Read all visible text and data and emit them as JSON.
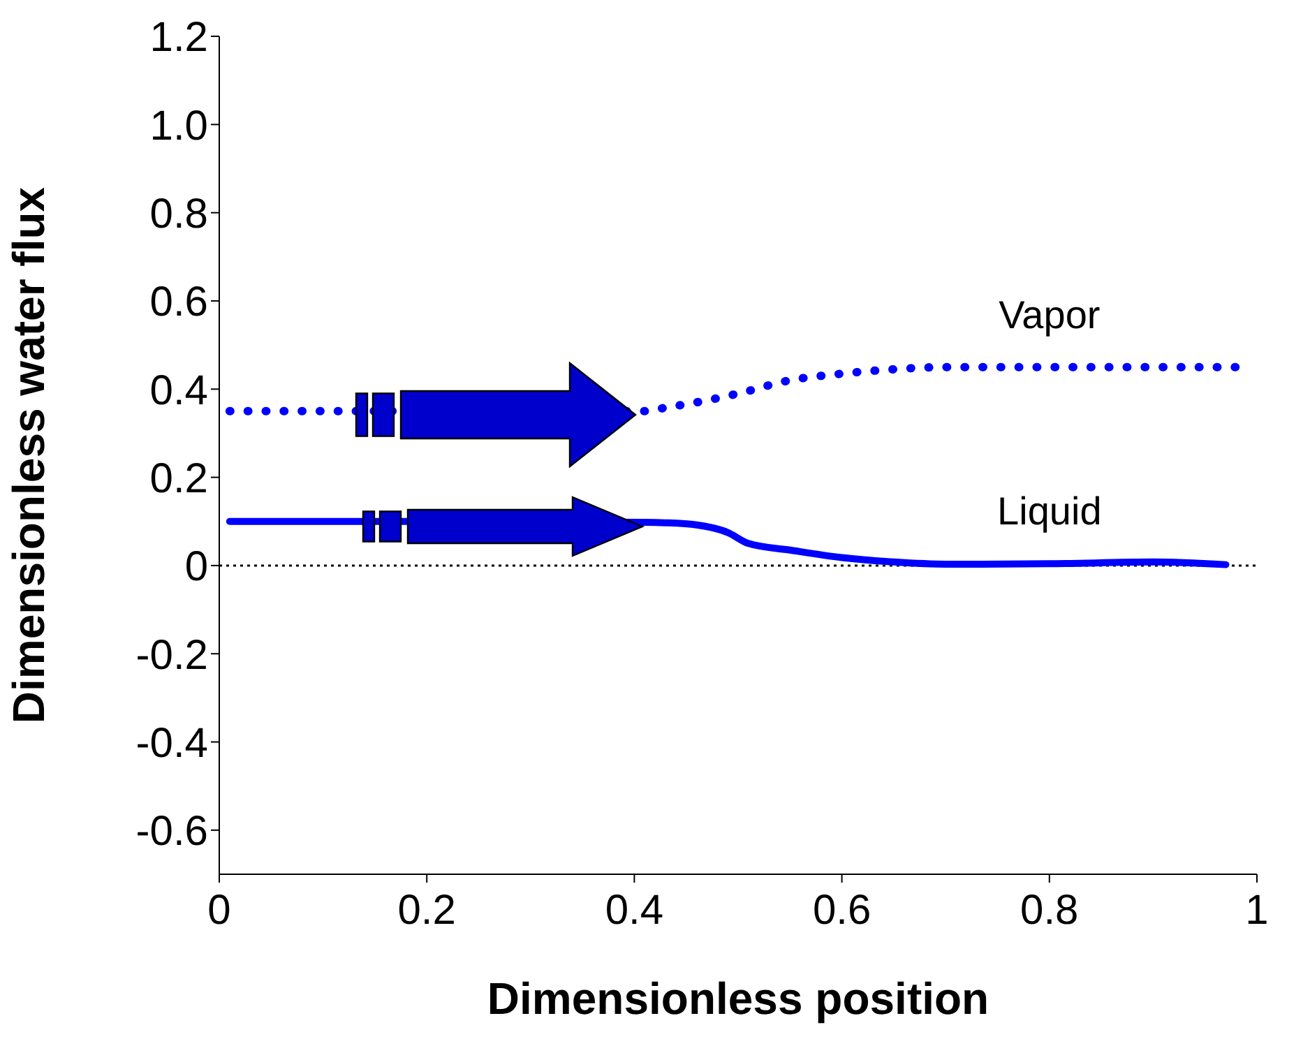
{
  "chart_data": {
    "type": "line",
    "xlabel": "Dimensionless position",
    "ylabel": "Dimensionless water flux",
    "xlim": [
      0,
      1
    ],
    "ylim": [
      -0.7,
      1.2
    ],
    "xticks": [
      0,
      0.2,
      0.4,
      0.6,
      0.8,
      1
    ],
    "yticks": [
      -0.6,
      -0.4,
      -0.2,
      0,
      0.2,
      0.4,
      0.6,
      0.8,
      {
        "value": 1,
        "label": "1.0"
      },
      1.2
    ],
    "grid": false,
    "legend": false,
    "marker": "none",
    "ref_lines": [
      {
        "axis": "y",
        "value": 0,
        "color": "#000000",
        "line_style": "dotted"
      }
    ],
    "series": [
      {
        "name": "Vapor",
        "color": "#0000ff",
        "line_style": "dotted",
        "x": [
          0.01,
          0.1,
          0.41,
          0.43,
          0.46,
          0.5,
          0.55,
          0.6,
          0.65,
          0.7,
          0.8,
          0.9,
          0.98
        ],
        "values": [
          0.35,
          0.35,
          0.35,
          0.358,
          0.37,
          0.39,
          0.42,
          0.435,
          0.445,
          0.45,
          0.45,
          0.45,
          0.45
        ]
      },
      {
        "name": "Liquid",
        "color": "#0000ff",
        "line_style": "solid",
        "x": [
          0.01,
          0.1,
          0.41,
          0.43,
          0.46,
          0.49,
          0.51,
          0.55,
          0.6,
          0.65,
          0.7,
          0.8,
          0.9,
          0.97
        ],
        "values": [
          0.1,
          0.1,
          0.098,
          0.097,
          0.092,
          0.075,
          0.05,
          0.035,
          0.018,
          0.008,
          0.003,
          0.004,
          0.008,
          0.002
        ]
      }
    ]
  }
}
